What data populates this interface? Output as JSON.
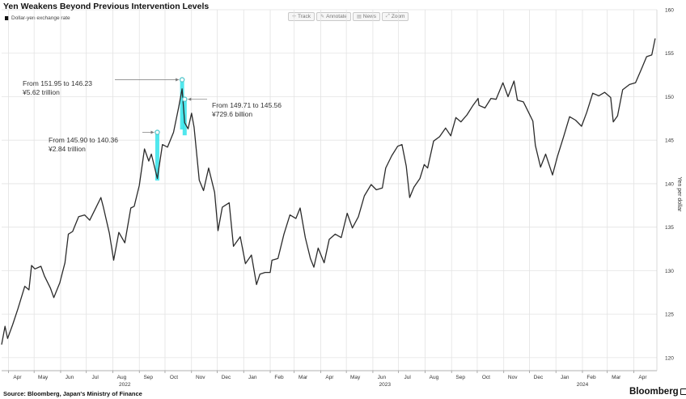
{
  "header": {
    "title": "Yen Weakens Beyond Previous Intervention Levels"
  },
  "legend": {
    "label": "Dollar-yen exchange rate"
  },
  "toolbar": {
    "track": "Track",
    "annotate": "Annotate",
    "news": "News",
    "zoom": "Zoom"
  },
  "footer": {
    "source": "Source: Bloomberg, Japan's Ministry of Finance",
    "brand": "Bloomberg"
  },
  "colors": {
    "line": "#2b2b2b",
    "grid": "#e3e3e3",
    "highlight": "#33e3ea",
    "marker": "#55c7cc"
  },
  "chart_data": {
    "type": "line",
    "title": "Yen Weakens Beyond Previous Intervention Levels",
    "xlabel": "",
    "ylabel": "Yen per dollar",
    "ylim": [
      118.5,
      160
    ],
    "y_ticks": [
      120,
      125,
      130,
      135,
      140,
      145,
      150,
      155,
      160
    ],
    "y_axis_side": "right",
    "grid": true,
    "x_range": [
      "2022-03-24",
      "2024-04-28"
    ],
    "x_ticks": [
      {
        "label": "Apr",
        "date": "2022-04-01"
      },
      {
        "label": "May",
        "date": "2022-05-01"
      },
      {
        "label": "Jun",
        "date": "2022-06-01"
      },
      {
        "label": "Jul",
        "date": "2022-07-01"
      },
      {
        "label": "Aug",
        "date": "2022-08-01"
      },
      {
        "label": "Sep",
        "date": "2022-09-01"
      },
      {
        "label": "Oct",
        "date": "2022-10-01"
      },
      {
        "label": "Nov",
        "date": "2022-11-01"
      },
      {
        "label": "Dec",
        "date": "2022-12-01"
      },
      {
        "label": "Jan",
        "date": "2023-01-01"
      },
      {
        "label": "Feb",
        "date": "2023-02-01"
      },
      {
        "label": "Mar",
        "date": "2023-03-01"
      },
      {
        "label": "Apr",
        "date": "2023-04-01"
      },
      {
        "label": "May",
        "date": "2023-05-01"
      },
      {
        "label": "Jun",
        "date": "2023-06-01"
      },
      {
        "label": "Jul",
        "date": "2023-07-01"
      },
      {
        "label": "Aug",
        "date": "2023-08-01"
      },
      {
        "label": "Sep",
        "date": "2023-09-01"
      },
      {
        "label": "Oct",
        "date": "2023-10-01"
      },
      {
        "label": "Nov",
        "date": "2023-11-01"
      },
      {
        "label": "Dec",
        "date": "2023-12-01"
      },
      {
        "label": "Jan",
        "date": "2024-01-01"
      },
      {
        "label": "Feb",
        "date": "2024-02-01"
      },
      {
        "label": "Mar",
        "date": "2024-03-01"
      },
      {
        "label": "Apr",
        "date": "2024-04-01"
      }
    ],
    "year_labels": [
      {
        "label": "2022",
        "date": "2022-08-15"
      },
      {
        "label": "2023",
        "date": "2023-06-15"
      },
      {
        "label": "2024",
        "date": "2024-02-01"
      }
    ],
    "series": [
      {
        "name": "Dollar-yen exchange rate",
        "points": [
          [
            "2022-03-24",
            121.5
          ],
          [
            "2022-03-28",
            123.6
          ],
          [
            "2022-03-31",
            122.2
          ],
          [
            "2022-04-06",
            123.8
          ],
          [
            "2022-04-12",
            125.6
          ],
          [
            "2022-04-20",
            128.2
          ],
          [
            "2022-04-25",
            127.8
          ],
          [
            "2022-04-28",
            130.6
          ],
          [
            "2022-05-02",
            130.2
          ],
          [
            "2022-05-09",
            130.5
          ],
          [
            "2022-05-13",
            129.4
          ],
          [
            "2022-05-20",
            128.0
          ],
          [
            "2022-05-24",
            126.9
          ],
          [
            "2022-05-31",
            128.6
          ],
          [
            "2022-06-06",
            130.9
          ],
          [
            "2022-06-10",
            134.2
          ],
          [
            "2022-06-15",
            134.5
          ],
          [
            "2022-06-17",
            135.0
          ],
          [
            "2022-06-22",
            136.2
          ],
          [
            "2022-06-29",
            136.4
          ],
          [
            "2022-07-05",
            135.8
          ],
          [
            "2022-07-13",
            137.4
          ],
          [
            "2022-07-18",
            138.4
          ],
          [
            "2022-07-21",
            137.3
          ],
          [
            "2022-07-28",
            134.3
          ],
          [
            "2022-08-02",
            131.2
          ],
          [
            "2022-08-08",
            134.4
          ],
          [
            "2022-08-15",
            133.2
          ],
          [
            "2022-08-22",
            137.2
          ],
          [
            "2022-08-26",
            137.4
          ],
          [
            "2022-09-01",
            139.8
          ],
          [
            "2022-09-07",
            144.0
          ],
          [
            "2022-09-12",
            142.6
          ],
          [
            "2022-09-15",
            143.4
          ],
          [
            "2022-09-22",
            140.6
          ],
          [
            "2022-09-28",
            144.5
          ],
          [
            "2022-10-04",
            144.2
          ],
          [
            "2022-10-11",
            145.9
          ],
          [
            "2022-10-17",
            148.8
          ],
          [
            "2022-10-21",
            150.9
          ],
          [
            "2022-10-24",
            147.0
          ],
          [
            "2022-10-28",
            146.3
          ],
          [
            "2022-11-01",
            148.1
          ],
          [
            "2022-11-04",
            146.5
          ],
          [
            "2022-11-10",
            140.4
          ],
          [
            "2022-11-15",
            139.2
          ],
          [
            "2022-11-21",
            141.8
          ],
          [
            "2022-11-28",
            139.0
          ],
          [
            "2022-12-02",
            134.6
          ],
          [
            "2022-12-07",
            137.3
          ],
          [
            "2022-12-15",
            137.8
          ],
          [
            "2022-12-20",
            132.8
          ],
          [
            "2022-12-28",
            133.9
          ],
          [
            "2023-01-03",
            130.8
          ],
          [
            "2023-01-10",
            131.8
          ],
          [
            "2023-01-16",
            128.4
          ],
          [
            "2023-01-20",
            129.6
          ],
          [
            "2023-01-26",
            129.8
          ],
          [
            "2023-02-01",
            129.8
          ],
          [
            "2023-02-03",
            131.2
          ],
          [
            "2023-02-10",
            131.4
          ],
          [
            "2023-02-17",
            134.2
          ],
          [
            "2023-02-24",
            136.4
          ],
          [
            "2023-03-03",
            136.0
          ],
          [
            "2023-03-08",
            137.2
          ],
          [
            "2023-03-14",
            133.8
          ],
          [
            "2023-03-20",
            131.4
          ],
          [
            "2023-03-24",
            130.4
          ],
          [
            "2023-03-29",
            132.6
          ],
          [
            "2023-04-05",
            130.9
          ],
          [
            "2023-04-11",
            133.6
          ],
          [
            "2023-04-18",
            134.2
          ],
          [
            "2023-04-25",
            133.8
          ],
          [
            "2023-05-02",
            136.6
          ],
          [
            "2023-05-08",
            134.9
          ],
          [
            "2023-05-15",
            136.2
          ],
          [
            "2023-05-22",
            138.6
          ],
          [
            "2023-05-30",
            139.9
          ],
          [
            "2023-06-05",
            139.3
          ],
          [
            "2023-06-12",
            139.5
          ],
          [
            "2023-06-16",
            141.8
          ],
          [
            "2023-06-23",
            143.2
          ],
          [
            "2023-06-30",
            144.3
          ],
          [
            "2023-07-05",
            144.5
          ],
          [
            "2023-07-10",
            142.0
          ],
          [
            "2023-07-14",
            138.4
          ],
          [
            "2023-07-19",
            139.6
          ],
          [
            "2023-07-26",
            140.6
          ],
          [
            "2023-07-31",
            142.2
          ],
          [
            "2023-08-04",
            141.8
          ],
          [
            "2023-08-11",
            144.9
          ],
          [
            "2023-08-18",
            145.4
          ],
          [
            "2023-08-25",
            146.4
          ],
          [
            "2023-08-31",
            145.5
          ],
          [
            "2023-09-06",
            147.6
          ],
          [
            "2023-09-12",
            147.1
          ],
          [
            "2023-09-19",
            147.9
          ],
          [
            "2023-09-26",
            149.0
          ],
          [
            "2023-10-02",
            149.8
          ],
          [
            "2023-10-03",
            149.0
          ],
          [
            "2023-10-10",
            148.7
          ],
          [
            "2023-10-17",
            149.8
          ],
          [
            "2023-10-23",
            149.7
          ],
          [
            "2023-10-31",
            151.6
          ],
          [
            "2023-11-06",
            150.0
          ],
          [
            "2023-11-13",
            151.8
          ],
          [
            "2023-11-17",
            149.6
          ],
          [
            "2023-11-24",
            149.4
          ],
          [
            "2023-11-30",
            148.2
          ],
          [
            "2023-12-05",
            147.2
          ],
          [
            "2023-12-08",
            144.4
          ],
          [
            "2023-12-14",
            141.9
          ],
          [
            "2023-12-20",
            143.4
          ],
          [
            "2023-12-28",
            141.0
          ],
          [
            "2024-01-03",
            143.2
          ],
          [
            "2024-01-10",
            145.4
          ],
          [
            "2024-01-17",
            147.7
          ],
          [
            "2024-01-24",
            147.3
          ],
          [
            "2024-01-31",
            146.6
          ],
          [
            "2024-02-06",
            148.2
          ],
          [
            "2024-02-13",
            150.4
          ],
          [
            "2024-02-20",
            150.1
          ],
          [
            "2024-02-27",
            150.5
          ],
          [
            "2024-03-05",
            149.9
          ],
          [
            "2024-03-08",
            147.1
          ],
          [
            "2024-03-13",
            147.8
          ],
          [
            "2024-03-19",
            150.8
          ],
          [
            "2024-03-27",
            151.4
          ],
          [
            "2024-04-03",
            151.6
          ],
          [
            "2024-04-10",
            153.2
          ],
          [
            "2024-04-16",
            154.6
          ],
          [
            "2024-04-22",
            154.8
          ],
          [
            "2024-04-26",
            156.7
          ]
        ]
      }
    ],
    "interventions": [
      {
        "date": "2022-09-22",
        "high": 145.9,
        "low": 140.36,
        "label": "From 145.90 to 140.36",
        "amount": "¥2.84 trillion"
      },
      {
        "date": "2022-10-21",
        "high": 151.95,
        "low": 146.23,
        "label": "From 151.95 to 146.23",
        "amount": "¥5.62 trillion"
      },
      {
        "date": "2022-10-24",
        "high": 149.71,
        "low": 145.56,
        "label": "From 149.71 to 145.56",
        "amount": "¥729.6 billion"
      }
    ]
  }
}
